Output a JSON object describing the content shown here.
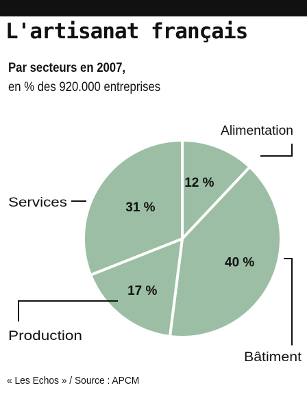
{
  "header": {
    "title": "L'artisanat français",
    "subtitle_line1": "Par secteurs en 2007,",
    "subtitle_line2": "en % des 920.000 entreprises"
  },
  "chart_data": {
    "type": "pie",
    "slices": [
      {
        "label": "Alimentation",
        "value": 12,
        "value_label": "12 %"
      },
      {
        "label": "Bâtiment",
        "value": 40,
        "value_label": "40 %"
      },
      {
        "label": "Production",
        "value": 17,
        "value_label": "17 %"
      },
      {
        "label": "Services",
        "value": 31,
        "value_label": "31 %"
      }
    ],
    "unit": "%",
    "slice_color": "#9cbea4",
    "separator_color": "#ffffff"
  },
  "source": "« Les Echos » / Source : APCM"
}
